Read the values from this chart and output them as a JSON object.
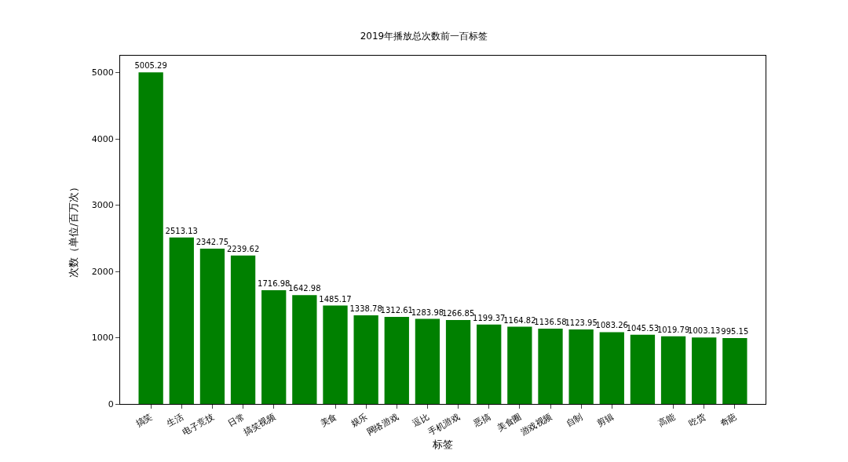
{
  "chart_data": {
    "type": "bar",
    "title": "2019年播放总次数前一百标签",
    "xlabel": "标签",
    "ylabel": "次数（单位/百万次）",
    "categories": [
      "搞笑",
      "生活",
      "电子竞技",
      "日常",
      "搞笑视频",
      null,
      "美食",
      "娱乐",
      "网络游戏",
      "逗比",
      "手机游戏",
      "恶搞",
      "美食圈",
      "游戏视频",
      "自制",
      "剪辑",
      null,
      "高能",
      "吃货",
      "奇葩"
    ],
    "values": [
      5005.29,
      2513.13,
      2342.75,
      2239.62,
      1716.98,
      1642.98,
      1485.17,
      1338.78,
      1312.61,
      1283.98,
      1266.85,
      1199.37,
      1164.82,
      1136.58,
      1123.95,
      1083.26,
      1045.53,
      1019.79,
      1003.13,
      995.15
    ],
    "color": "#008000",
    "ylim": [
      0,
      5256
    ],
    "yticks": [
      0,
      1000,
      2000,
      3000,
      4000,
      5000
    ],
    "data_labels": true
  }
}
